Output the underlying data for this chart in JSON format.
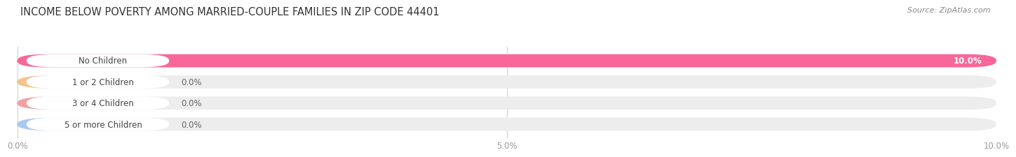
{
  "title": "INCOME BELOW POVERTY AMONG MARRIED-COUPLE FAMILIES IN ZIP CODE 44401",
  "source": "Source: ZipAtlas.com",
  "categories": [
    "No Children",
    "1 or 2 Children",
    "3 or 4 Children",
    "5 or more Children"
  ],
  "values": [
    10.0,
    0.0,
    0.0,
    0.0
  ],
  "bar_colors": [
    "#F8679A",
    "#F5C48A",
    "#F5A0A0",
    "#A8C8F0"
  ],
  "bar_bg_colors": [
    "#EDEDED",
    "#EDEDED",
    "#EDEDED",
    "#EDEDED"
  ],
  "xlim": [
    0,
    10.0
  ],
  "xticks": [
    0.0,
    5.0,
    10.0
  ],
  "xtick_labels": [
    "0.0%",
    "5.0%",
    "10.0%"
  ],
  "background_color": "#ffffff",
  "bar_height": 0.62,
  "title_fontsize": 10.5,
  "tick_fontsize": 8.5,
  "label_fontsize": 8.5,
  "value_fontsize": 8.5,
  "source_fontsize": 8
}
